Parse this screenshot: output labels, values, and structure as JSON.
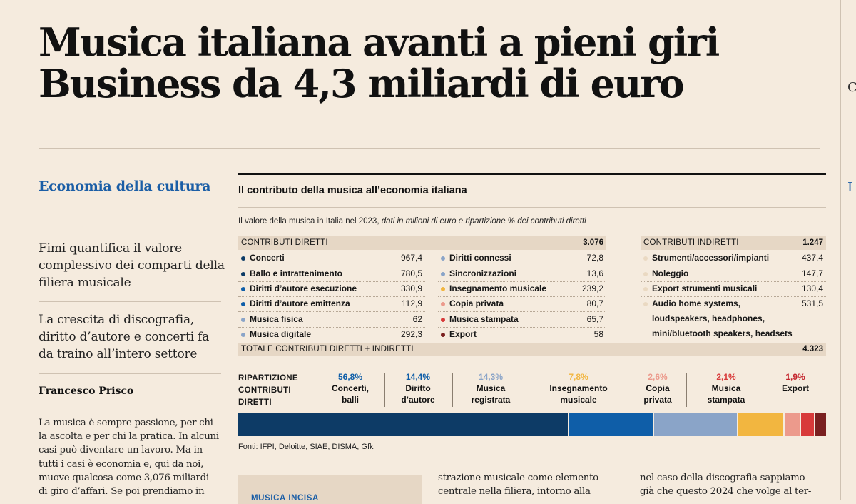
{
  "headline": {
    "line1": "Musica italiana avanti a pieni giri",
    "line2": "Business da 4,3 miliardi di euro"
  },
  "sidebar": {
    "section": "Economia della cultura",
    "summary1": "Fimi quantifica il valore complessivo dei comparti della filiera musicale",
    "summary2": "La crescita di discografia, diritto d’autore e concerti fa da traino all’intero settore",
    "author": "Francesco Prisco",
    "body_lines": [
      "La musica è sempre passione, per chi",
      "la ascolta e per chi la pratica. In alcuni",
      "casi può diventare un lavoro. Ma in",
      "tutti i casi è economia e, qui da noi,",
      "muove qualcosa come 3,076 miliardi",
      "di giro d’affari. Se poi prendiamo in"
    ]
  },
  "infographic": {
    "title": "Il contributo della musica all’economia italiana",
    "subtitle_plain": "Il valore della musica in Italia nel 2023, ",
    "subtitle_italic": "dati in milioni di euro e ripartizione % dei contributi diretti",
    "direct": {
      "label": "CONTRIBUTI DIRETTI",
      "total": "3.076",
      "left": [
        {
          "label": "Concerti",
          "value": "967,4",
          "color": "#0d3b66"
        },
        {
          "label": "Ballo e intrattenimento",
          "value": "780,5",
          "color": "#0d3b66"
        },
        {
          "label": "Diritti d’autore esecuzione",
          "value": "330,9",
          "color": "#0f5ea8"
        },
        {
          "label": "Diritti d’autore emittenza",
          "value": "112,9",
          "color": "#0f5ea8"
        },
        {
          "label": "Musica fisica",
          "value": "62",
          "color": "#8aa4c8"
        },
        {
          "label": "Musica digitale",
          "value": "292,3",
          "color": "#8aa4c8"
        }
      ],
      "right": [
        {
          "label": "Diritti connessi",
          "value": "72,8",
          "color": "#8aa4c8"
        },
        {
          "label": "Sincronizzazioni",
          "value": "13,6",
          "color": "#8aa4c8"
        },
        {
          "label": "Insegnamento musicale",
          "value": "239,2",
          "color": "#f2b640"
        },
        {
          "label": "Copia privata",
          "value": "80,7",
          "color": "#ec9a8c"
        },
        {
          "label": "Musica stampata",
          "value": "65,7",
          "color": "#d83a3a"
        },
        {
          "label": "Export",
          "value": "58",
          "color": "#7a2020"
        }
      ]
    },
    "indirect": {
      "label": "CONTRIBUTI INDIRETTI",
      "total": "1.247",
      "items": [
        {
          "label": "Strumenti/accessori/impianti",
          "value": "437,4"
        },
        {
          "label": "Noleggio",
          "value": "147,7"
        },
        {
          "label": "Export strumenti musicali",
          "value": "130,4"
        }
      ],
      "audio": {
        "line1": "Audio home systems,",
        "line2": "loudspeakers, headphones,",
        "line3": "mini/bluetooth speakers, headsets",
        "value": "531,5"
      },
      "dot_color": "#ead9c2"
    },
    "grand_total": {
      "label": "TOTALE CONTRIBUTI DIRETTI + INDIRETTI",
      "value": "4.323"
    },
    "ripartizione": {
      "label1": "RIPARTIZIONE",
      "label2": "CONTRIBUTI",
      "label3": "DIRETTI",
      "segments": [
        {
          "pct": "56,8%",
          "name": "Concerti,\nballi",
          "value": 56.8,
          "color": "#0d3b66",
          "pct_color": "#0f5ea8"
        },
        {
          "pct": "14,4%",
          "name": "Diritto\nd’autore",
          "value": 14.4,
          "color": "#0f5ea8",
          "pct_color": "#0f5ea8"
        },
        {
          "pct": "14,3%",
          "name": "Musica\nregistrata",
          "value": 14.3,
          "color": "#8aa4c8",
          "pct_color": "#8aa4c8"
        },
        {
          "pct": "7,8%",
          "name": "Insegnamento\nmusicale",
          "value": 7.8,
          "color": "#f2b640",
          "pct_color": "#f2b640"
        },
        {
          "pct": "2,6%",
          "name": "Copia\nprivata",
          "value": 2.6,
          "color": "#ec9a8c",
          "pct_color": "#ec9a8c"
        },
        {
          "pct": "2,1%",
          "name": "Musica\nstampata",
          "value": 2.1,
          "color": "#d83a3a",
          "pct_color": "#d83a3a"
        },
        {
          "pct": "1,9%",
          "name": "Export",
          "value": 1.9,
          "color": "#7a2020",
          "pct_color": "#c4262e"
        }
      ]
    },
    "sources": "Fonti: IFPI, Deloitte, SIAE, DISMA, Gfk"
  },
  "bottom": {
    "box_label": "MUSICA INCISA",
    "col2_line1": "strazione musicale come elemento",
    "col2_line2": "centrale nella filiera, intorno alla",
    "col3_line1": "nel caso della discografia sappiamo",
    "col3_line2": "già che questo 2024 che volge al ter-"
  }
}
